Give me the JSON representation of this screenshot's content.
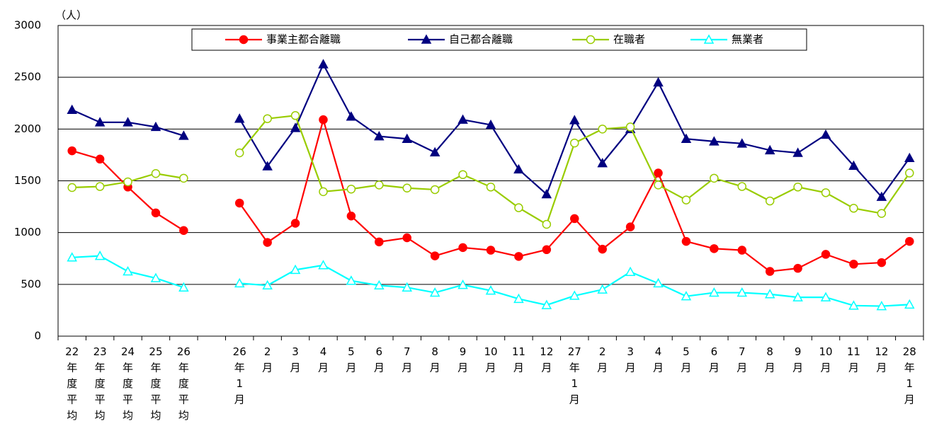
{
  "chart_data": {
    "type": "line",
    "y_label": "（人）",
    "categories": [
      "22年度平均",
      "23年度平均",
      "24年度平均",
      "25年度平均",
      "26年度平均",
      null,
      "26年1月",
      "2月",
      "3月",
      "4月",
      "5月",
      "6月",
      "7月",
      "8月",
      "9月",
      "10月",
      "11月",
      "12月",
      "27年1月",
      "2月",
      "3月",
      "4月",
      "5月",
      "6月",
      "7月",
      "8月",
      "9月",
      "10月",
      "11月",
      "12月",
      "28年1月"
    ],
    "series": [
      {
        "name": "事業主都合離職",
        "color": "#ff0000",
        "marker": "circle",
        "filled": true,
        "values": [
          1790,
          1710,
          1440,
          1190,
          1020,
          null,
          1285,
          905,
          1090,
          2090,
          1160,
          910,
          950,
          775,
          855,
          830,
          770,
          835,
          1135,
          840,
          1055,
          1575,
          915,
          845,
          830,
          625,
          655,
          790,
          695,
          710,
          915
        ]
      },
      {
        "name": "自己都合離職",
        "color": "#000080",
        "marker": "triangle",
        "filled": true,
        "values": [
          2185,
          2065,
          2065,
          2020,
          1935,
          null,
          2100,
          1640,
          2010,
          2625,
          2120,
          1930,
          1905,
          1775,
          2090,
          2040,
          1610,
          1370,
          2085,
          1670,
          2000,
          2450,
          1905,
          1880,
          1860,
          1795,
          1770,
          1945,
          1645,
          1345,
          1720
        ]
      },
      {
        "name": "在職者",
        "color": "#99cc00",
        "marker": "circle",
        "filled": false,
        "values": [
          1435,
          1445,
          1490,
          1570,
          1525,
          null,
          1770,
          2100,
          2130,
          1395,
          1420,
          1460,
          1430,
          1415,
          1560,
          1440,
          1240,
          1080,
          1865,
          2000,
          2020,
          1460,
          1315,
          1525,
          1445,
          1305,
          1440,
          1385,
          1235,
          1185,
          1575
        ]
      },
      {
        "name": "無業者",
        "color": "#00ffff",
        "marker": "triangle",
        "filled": false,
        "values": [
          760,
          775,
          625,
          560,
          470,
          null,
          510,
          490,
          640,
          685,
          535,
          490,
          470,
          420,
          495,
          440,
          360,
          300,
          390,
          450,
          620,
          510,
          385,
          420,
          420,
          405,
          375,
          375,
          295,
          290,
          305
        ]
      }
    ],
    "ylim": [
      0,
      3000
    ],
    "yticks": [
      0,
      500,
      1000,
      1500,
      2000,
      2500,
      3000
    ],
    "grid": true
  }
}
